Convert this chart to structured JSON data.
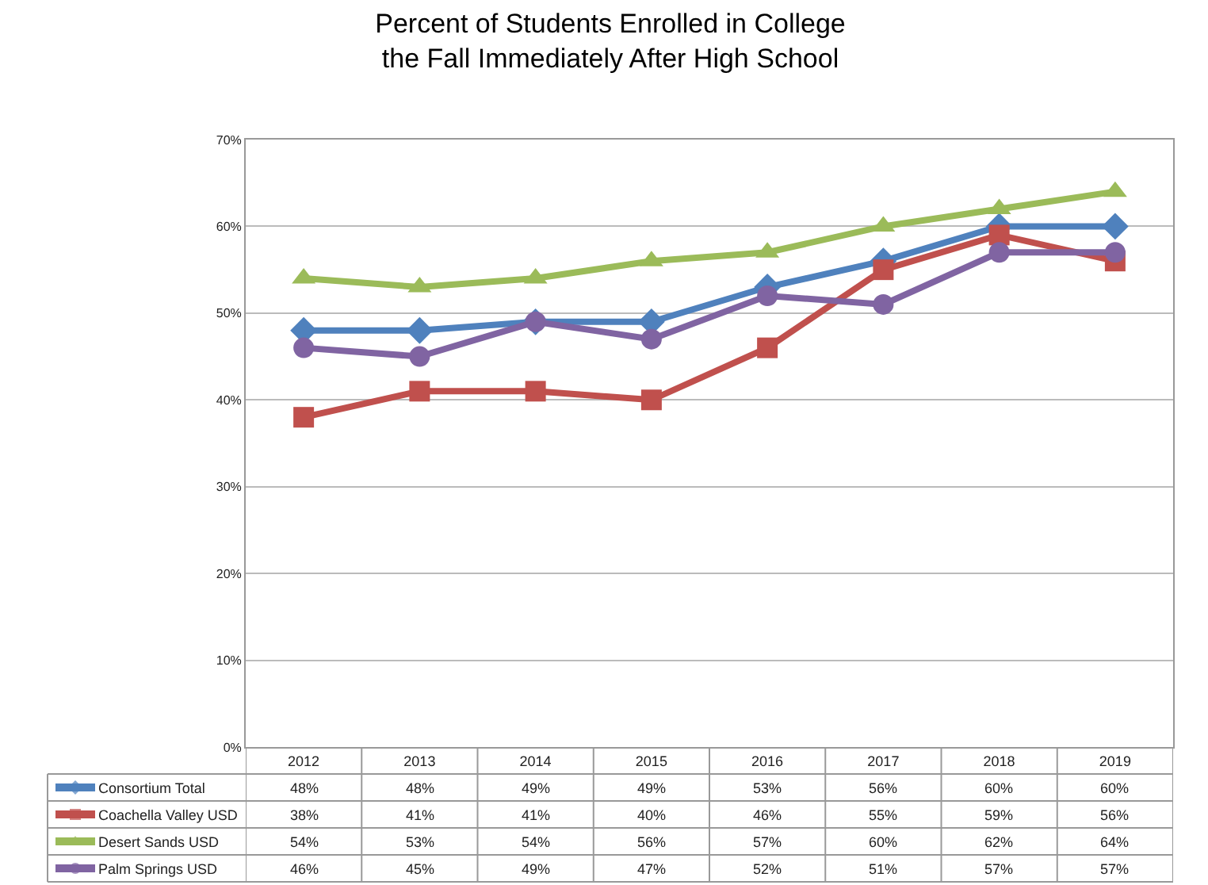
{
  "chart_data": {
    "type": "line",
    "title": "Percent of Students Enrolled in College\nthe Fall Immediately After High School",
    "categories": [
      "2012",
      "2013",
      "2014",
      "2015",
      "2016",
      "2017",
      "2018",
      "2019"
    ],
    "series": [
      {
        "name": "Consortium Total",
        "color": "#4f81bd",
        "marker": "diamond",
        "values": [
          48,
          48,
          49,
          49,
          53,
          56,
          60,
          60
        ],
        "value_labels": [
          "48%",
          "48%",
          "49%",
          "49%",
          "53%",
          "56%",
          "60%",
          "60%"
        ]
      },
      {
        "name": "Coachella Valley USD",
        "color": "#c0504d",
        "marker": "square",
        "values": [
          38,
          41,
          41,
          40,
          46,
          55,
          59,
          56
        ],
        "value_labels": [
          "38%",
          "41%",
          "41%",
          "40%",
          "46%",
          "55%",
          "59%",
          "56%"
        ]
      },
      {
        "name": "Desert Sands USD",
        "color": "#9bbb59",
        "marker": "triangle",
        "values": [
          54,
          53,
          54,
          56,
          57,
          60,
          62,
          64
        ],
        "value_labels": [
          "54%",
          "53%",
          "54%",
          "56%",
          "57%",
          "60%",
          "62%",
          "64%"
        ]
      },
      {
        "name": "Palm Springs USD",
        "color": "#8064a2",
        "marker": "circle",
        "values": [
          46,
          45,
          49,
          47,
          52,
          51,
          57,
          57
        ],
        "value_labels": [
          "46%",
          "45%",
          "49%",
          "47%",
          "52%",
          "51%",
          "57%",
          "57%"
        ]
      }
    ],
    "ylim": [
      0,
      70
    ],
    "yticks": [
      {
        "value": 0,
        "label": "0%"
      },
      {
        "value": 10,
        "label": "10%"
      },
      {
        "value": 20,
        "label": "20%"
      },
      {
        "value": 30,
        "label": "30%"
      },
      {
        "value": 40,
        "label": "40%"
      },
      {
        "value": 50,
        "label": "50%"
      },
      {
        "value": 60,
        "label": "60%"
      },
      {
        "value": 70,
        "label": "70%"
      }
    ],
    "grid": "y",
    "line_style": "solid",
    "legend": "bottom"
  }
}
